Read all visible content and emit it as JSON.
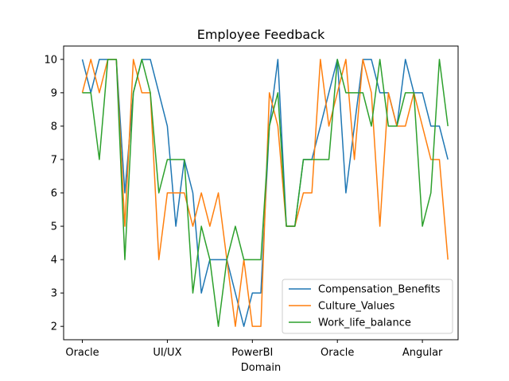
{
  "chart_data": {
    "type": "line",
    "title": "Employee Feedback",
    "xlabel": "Domain",
    "ylabel": "",
    "x_tick_labels": [
      "Oracle",
      "UI/UX",
      "PowerBI",
      "Oracle",
      "Angular"
    ],
    "x_tick_positions": [
      0,
      10,
      20,
      30,
      40
    ],
    "xlim": [
      -2.2,
      44.2
    ],
    "ylim": [
      1.6,
      10.4
    ],
    "y_ticks": [
      2,
      3,
      4,
      5,
      6,
      7,
      8,
      9,
      10
    ],
    "legend_position": "lower-right",
    "grid": false,
    "series": [
      {
        "name": "Compensation_Benefits",
        "color": "#1f77b4",
        "values": [
          10,
          9,
          10,
          10,
          10,
          6,
          9,
          10,
          10,
          9,
          8,
          5,
          7,
          6,
          3,
          4,
          4,
          4,
          3,
          2,
          3,
          3,
          8,
          10,
          5,
          5,
          7,
          7,
          8,
          9,
          10,
          6,
          8,
          10,
          10,
          9,
          9,
          8,
          10,
          9,
          9,
          8,
          8,
          7
        ]
      },
      {
        "name": "Culture_Values",
        "color": "#ff7f0e",
        "values": [
          9,
          10,
          9,
          10,
          10,
          5,
          10,
          9,
          9,
          4,
          6,
          6,
          6,
          5,
          6,
          5,
          6,
          4,
          2,
          4,
          2,
          2,
          9,
          8,
          5,
          5,
          6,
          6,
          10,
          8,
          9,
          10,
          7,
          10,
          9,
          5,
          9,
          8,
          8,
          9,
          8,
          7,
          7,
          4
        ]
      },
      {
        "name": "Work_life_balance",
        "color": "#2ca02c",
        "values": [
          9,
          9,
          7,
          10,
          10,
          4,
          9,
          10,
          9,
          6,
          7,
          7,
          7,
          3,
          5,
          4,
          2,
          4,
          5,
          4,
          4,
          4,
          8,
          9,
          5,
          5,
          7,
          7,
          7,
          7,
          10,
          9,
          9,
          9,
          8,
          10,
          8,
          8,
          9,
          9,
          5,
          6,
          10,
          8
        ]
      }
    ]
  }
}
